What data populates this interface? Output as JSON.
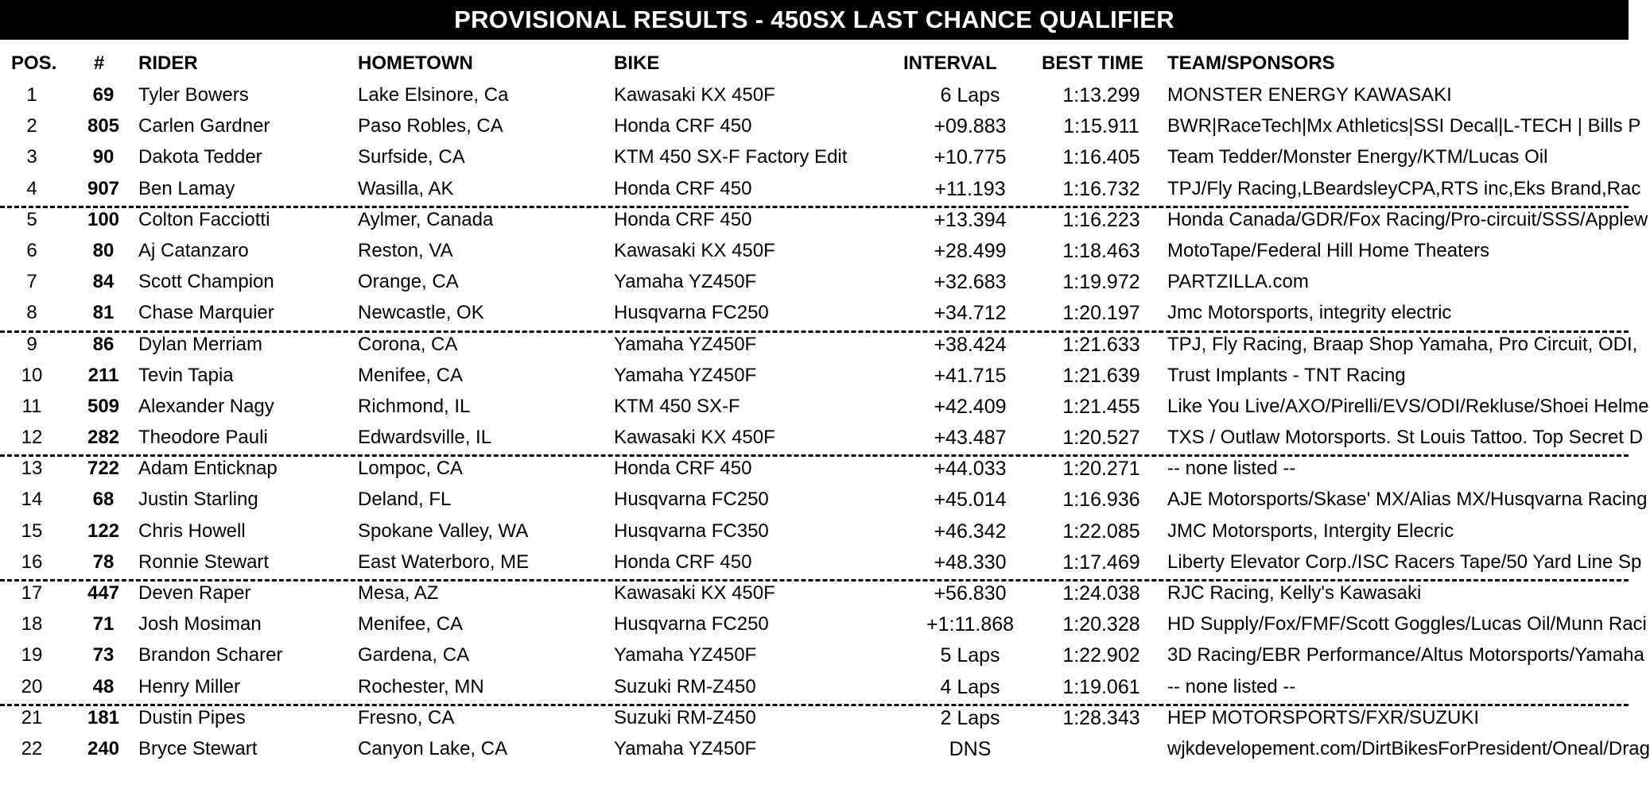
{
  "title": "PROVISIONAL RESULTS - 450SX LAST CHANCE QUALIFIER",
  "headers": {
    "pos": "POS.",
    "num": "#",
    "rider": "RIDER",
    "hometown": "HOMETOWN",
    "bike": "BIKE",
    "interval": "INTERVAL",
    "best_time": "BEST TIME",
    "team": "TEAM/SPONSORS"
  },
  "rows": [
    {
      "pos": "1",
      "num": "69",
      "rider": "Tyler Bowers",
      "hometown": "Lake Elsinore, Ca",
      "bike": "Kawasaki KX 450F",
      "interval": "6 Laps",
      "best": "1:13.299",
      "team": "MONSTER ENERGY KAWASAKI"
    },
    {
      "pos": "2",
      "num": "805",
      "rider": "Carlen Gardner",
      "hometown": "Paso Robles, CA",
      "bike": "Honda CRF 450",
      "interval": "+09.883",
      "best": "1:15.911",
      "team": "BWR|RaceTech|Mx Athletics|SSI Decal|L-TECH | Bills P"
    },
    {
      "pos": "3",
      "num": "90",
      "rider": "Dakota Tedder",
      "hometown": "Surfside, CA",
      "bike": "KTM 450 SX-F Factory Edit",
      "interval": "+10.775",
      "best": "1:16.405",
      "team": "Team Tedder/Monster Energy/KTM/Lucas Oil"
    },
    {
      "pos": "4",
      "num": "907",
      "rider": "Ben Lamay",
      "hometown": "Wasilla, AK",
      "bike": "Honda CRF 450",
      "interval": "+11.193",
      "best": "1:16.732",
      "team": "TPJ/Fly Racing,LBeardsleyCPA,RTS inc,Eks Brand,Rac"
    },
    {
      "pos": "5",
      "num": "100",
      "rider": "Colton Facciotti",
      "hometown": "Aylmer, Canada",
      "bike": "Honda CRF 450",
      "interval": "+13.394",
      "best": "1:16.223",
      "team": "Honda Canada/GDR/Fox Racing/Pro-circuit/SSS/Applew"
    },
    {
      "pos": "6",
      "num": "80",
      "rider": "Aj Catanzaro",
      "hometown": "Reston, VA",
      "bike": "Kawasaki KX 450F",
      "interval": "+28.499",
      "best": "1:18.463",
      "team": "MotoTape/Federal Hill Home Theaters"
    },
    {
      "pos": "7",
      "num": "84",
      "rider": "Scott Champion",
      "hometown": "Orange, CA",
      "bike": "Yamaha YZ450F",
      "interval": "+32.683",
      "best": "1:19.972",
      "team": "PARTZILLA.com"
    },
    {
      "pos": "8",
      "num": "81",
      "rider": "Chase Marquier",
      "hometown": "Newcastle, OK",
      "bike": "Husqvarna FC250",
      "interval": "+34.712",
      "best": "1:20.197",
      "team": "Jmc Motorsports, integrity electric"
    },
    {
      "pos": "9",
      "num": "86",
      "rider": "Dylan Merriam",
      "hometown": "Corona, CA",
      "bike": "Yamaha YZ450F",
      "interval": "+38.424",
      "best": "1:21.633",
      "team": "TPJ, Fly Racing, Braap Shop Yamaha, Pro Circuit, ODI,"
    },
    {
      "pos": "10",
      "num": "211",
      "rider": "Tevin Tapia",
      "hometown": "Menifee, CA",
      "bike": "Yamaha YZ450F",
      "interval": "+41.715",
      "best": "1:21.639",
      "team": "Trust Implants - TNT Racing"
    },
    {
      "pos": "11",
      "num": "509",
      "rider": "Alexander Nagy",
      "hometown": "Richmond, IL",
      "bike": "KTM 450 SX-F",
      "interval": "+42.409",
      "best": "1:21.455",
      "team": "Like You Live/AXO/Pirelli/EVS/ODI/Rekluse/Shoei Helme"
    },
    {
      "pos": "12",
      "num": "282",
      "rider": "Theodore Pauli",
      "hometown": "Edwardsville, IL",
      "bike": "Kawasaki KX 450F",
      "interval": "+43.487",
      "best": "1:20.527",
      "team": "TXS / Outlaw Motorsports. St Louis Tattoo. Top Secret D"
    },
    {
      "pos": "13",
      "num": "722",
      "rider": "Adam Enticknap",
      "hometown": "Lompoc, CA",
      "bike": "Honda CRF 450",
      "interval": "+44.033",
      "best": "1:20.271",
      "team": "-- none listed --"
    },
    {
      "pos": "14",
      "num": "68",
      "rider": "Justin Starling",
      "hometown": "Deland, FL",
      "bike": "Husqvarna FC250",
      "interval": "+45.014",
      "best": "1:16.936",
      "team": "AJE Motorsports/Skase' MX/Alias MX/Husqvarna Racing"
    },
    {
      "pos": "15",
      "num": "122",
      "rider": "Chris Howell",
      "hometown": "Spokane Valley, WA",
      "bike": "Husqvarna FC350",
      "interval": "+46.342",
      "best": "1:22.085",
      "team": "JMC Motorsports, Intergity Elecric"
    },
    {
      "pos": "16",
      "num": "78",
      "rider": "Ronnie Stewart",
      "hometown": "East Waterboro, ME",
      "bike": "Honda CRF 450",
      "interval": "+48.330",
      "best": "1:17.469",
      "team": "Liberty Elevator Corp./ISC Racers Tape/50 Yard Line Sp"
    },
    {
      "pos": "17",
      "num": "447",
      "rider": "Deven Raper",
      "hometown": "Mesa, AZ",
      "bike": "Kawasaki KX 450F",
      "interval": "+56.830",
      "best": "1:24.038",
      "team": "RJC Racing, Kelly's Kawasaki"
    },
    {
      "pos": "18",
      "num": "71",
      "rider": "Josh Mosiman",
      "hometown": "Menifee, CA",
      "bike": "Husqvarna FC250",
      "interval": "+1:11.868",
      "best": "1:20.328",
      "team": "HD Supply/Fox/FMF/Scott Goggles/Lucas Oil/Munn Raci"
    },
    {
      "pos": "19",
      "num": "73",
      "rider": "Brandon Scharer",
      "hometown": "Gardena, CA",
      "bike": "Yamaha YZ450F",
      "interval": "5 Laps",
      "best": "1:22.902",
      "team": "3D Racing/EBR Performance/Altus Motorsports/Yamaha"
    },
    {
      "pos": "20",
      "num": "48",
      "rider": "Henry Miller",
      "hometown": "Rochester, MN",
      "bike": "Suzuki RM-Z450",
      "interval": "4 Laps",
      "best": "1:19.061",
      "team": "-- none listed --"
    },
    {
      "pos": "21",
      "num": "181",
      "rider": "Dustin Pipes",
      "hometown": "Fresno, CA",
      "bike": "Suzuki RM-Z450",
      "interval": "2 Laps",
      "best": "1:28.343",
      "team": "HEP MOTORSPORTS/FXR/SUZUKI"
    },
    {
      "pos": "22",
      "num": "240",
      "rider": "Bryce Stewart",
      "hometown": "Canyon Lake, CA",
      "bike": "Yamaha YZ450F",
      "interval": "DNS",
      "best": "",
      "team": "wjkdevelopement.com/DirtBikesForPresident/Oneal/Drag"
    }
  ]
}
